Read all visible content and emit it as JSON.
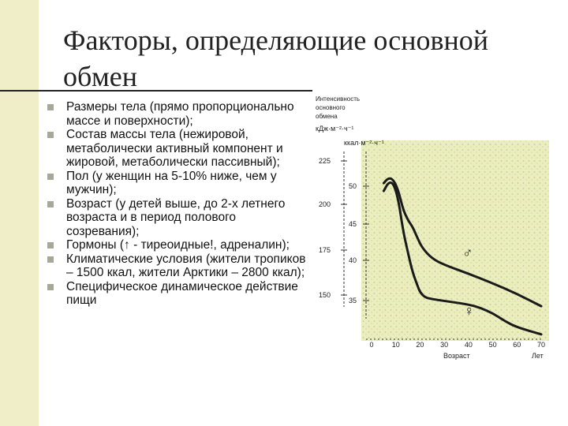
{
  "slide": {
    "title": "Факторы, определяющие основной обмен",
    "bullets": [
      "Размеры тела (прямо пропорционально массе и поверхности);",
      "Состав массы тела (нежировой, метаболически активный компонент и жировой, метаболически пассивный);",
      "Пол (у женщин на 5-10% ниже, чем у мужчин);",
      "Возраст (у детей выше, до 2-х летнего возраста и в период полового созревания);",
      "Гормоны (↑ - тиреоидные!, адреналин);",
      "Климатические условия (жители тропиков – 1500 ккал, жители Арктики – 2800 ккал);",
      "Специфическое динамическое действие пищи"
    ]
  },
  "chart_data": {
    "type": "line",
    "ylabel_lines": [
      "Интенсивность",
      "основного",
      "обмена"
    ],
    "yunit_kj": "кДж·м⁻²·ч⁻¹",
    "yunit_kcal": "ккал·м⁻²·ч⁻¹",
    "xlabel": "Возраст",
    "xunit": "Лет",
    "x_ticks": [
      "0",
      "10",
      "20",
      "30",
      "40",
      "50",
      "60",
      "70"
    ],
    "xlim": [
      0,
      70
    ],
    "y_kj_ticks": [
      "225",
      "200",
      "175",
      "150"
    ],
    "y_kcal_ticks": [
      "50",
      "45",
      "40",
      "35"
    ],
    "ylim_kcal": [
      32,
      53
    ],
    "series": [
      {
        "name": "♂",
        "x": [
          5,
          7,
          9,
          11,
          13,
          15,
          17,
          19,
          21,
          25,
          30,
          40,
          50,
          60,
          70
        ],
        "y": [
          49.4,
          50.0,
          49.8,
          48.6,
          46.4,
          45.2,
          44.4,
          43.1,
          42.0,
          40.8,
          40.1,
          39.1,
          38.0,
          36.8,
          35.4
        ]
      },
      {
        "name": "♀",
        "x": [
          5,
          7,
          9,
          11,
          13,
          15,
          17,
          19,
          20,
          22,
          25,
          30,
          40,
          45,
          50,
          55,
          60,
          70
        ],
        "y": [
          48.5,
          49.5,
          49.4,
          47.6,
          44.0,
          41.5,
          39.2,
          37.7,
          37.0,
          36.4,
          36.2,
          36.0,
          35.6,
          35.2,
          34.6,
          33.7,
          33.0,
          32.2
        ]
      }
    ]
  }
}
